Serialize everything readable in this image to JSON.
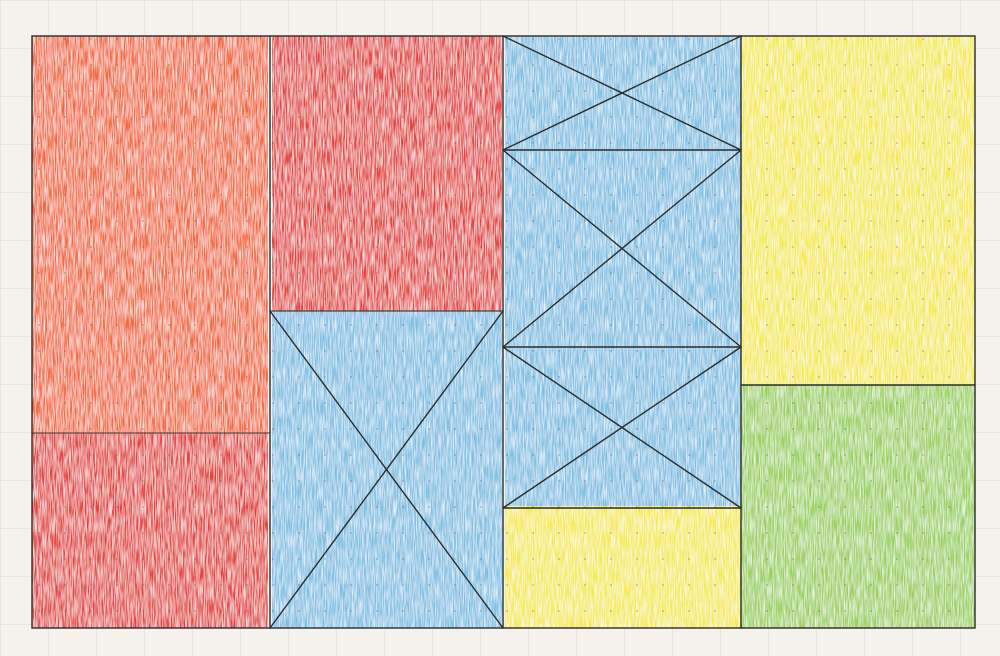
{
  "artwork": {
    "palette": {
      "paper": "#f5f2ee",
      "orange": "#f26a3c",
      "red": "#e3453f",
      "blue": "#7fc0e3",
      "yellow": "#f5ea4f",
      "green": "#9bd15c",
      "pencil": "#2b2b2b"
    },
    "panels": [
      {
        "name": "panel-orange-top-left",
        "color": "orange"
      },
      {
        "name": "panel-red-bottom-left",
        "color": "red"
      },
      {
        "name": "panel-red-top-center",
        "color": "red"
      },
      {
        "name": "panel-blue-bottom-center",
        "color": "blue",
        "crossed": true
      },
      {
        "name": "panel-blue-center-right",
        "color": "blue",
        "crossed": true
      },
      {
        "name": "panel-yellow-bottom-center",
        "color": "yellow"
      },
      {
        "name": "panel-yellow-top-right",
        "color": "yellow"
      },
      {
        "name": "panel-green-bottom-right",
        "color": "green"
      }
    ]
  }
}
